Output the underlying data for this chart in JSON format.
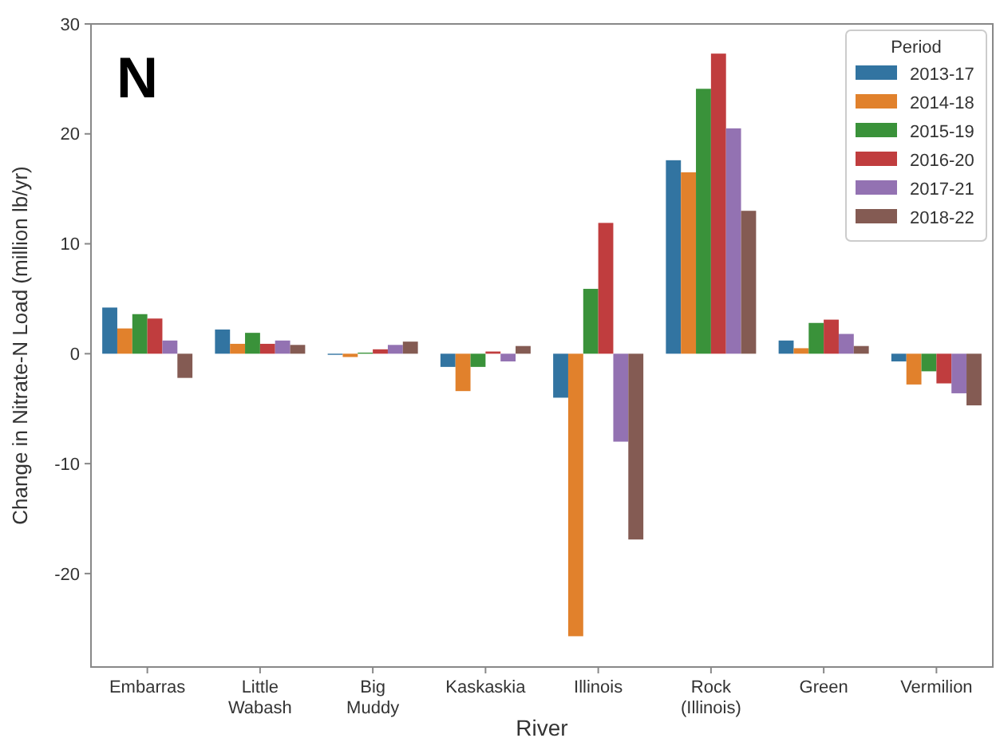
{
  "chart_data": {
    "type": "bar",
    "xlabel": "River",
    "ylabel": "Change in Nitrate-N Load (million lb/yr)",
    "legend_title": "Period",
    "annotations": [
      "N"
    ],
    "categories": [
      "Embarras",
      "Little\nWabash",
      "Big\nMuddy",
      "Kaskaskia",
      "Illinois",
      "Rock\n(Illinois)",
      "Green",
      "Vermilion"
    ],
    "series": [
      {
        "name": "2013-17",
        "color": "#3274a1",
        "values": [
          4.2,
          2.2,
          -0.1,
          -1.2,
          -4.0,
          17.6,
          1.2,
          -0.7
        ]
      },
      {
        "name": "2014-18",
        "color": "#e1812c",
        "values": [
          2.3,
          0.9,
          -0.3,
          -3.4,
          -25.7,
          16.5,
          0.5,
          -2.8
        ]
      },
      {
        "name": "2015-19",
        "color": "#3a923a",
        "values": [
          3.6,
          1.9,
          0.1,
          -1.2,
          5.9,
          24.1,
          2.8,
          -1.6
        ]
      },
      {
        "name": "2016-20",
        "color": "#c03d3e",
        "values": [
          3.2,
          0.9,
          0.4,
          0.2,
          11.9,
          27.3,
          3.1,
          -2.7
        ]
      },
      {
        "name": "2017-21",
        "color": "#9372b2",
        "values": [
          1.2,
          1.2,
          0.8,
          -0.7,
          -8.0,
          20.5,
          1.8,
          -3.6
        ]
      },
      {
        "name": "2018-22",
        "color": "#845b53",
        "values": [
          -2.2,
          0.8,
          1.1,
          0.7,
          -16.9,
          13.0,
          0.7,
          -4.7
        ]
      }
    ],
    "ylim": [
      -28.5,
      30
    ],
    "yticks": [
      -20,
      -10,
      0,
      10,
      20,
      30
    ],
    "grid": false,
    "legend": "top right"
  }
}
